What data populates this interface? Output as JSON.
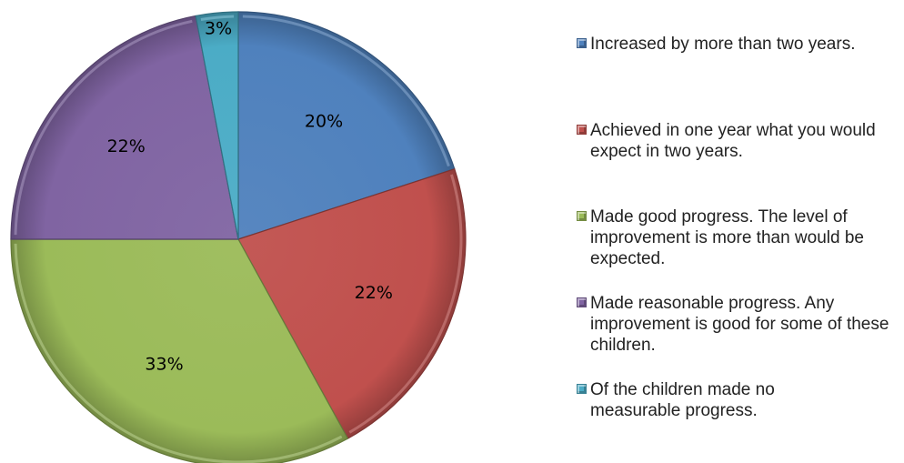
{
  "chart_data": {
    "type": "pie",
    "categories": [
      "Increased by more than two years.",
      "Achieved in one year what you would expect in two years.",
      "Made good progress. The level of improvement is more than would be expected.",
      "Made reasonable progress. Any improvement is good for some of these children.",
      "Of the children made no measurable progress."
    ],
    "values": [
      20,
      22,
      33,
      22,
      3
    ],
    "data_labels": [
      "20%",
      "22%",
      "33%",
      "22%",
      "3%"
    ],
    "colors": [
      "#4f81bd",
      "#c0504d",
      "#9bbb59",
      "#8064a2",
      "#4bacc6"
    ],
    "legend_placement": "right",
    "start_angle_deg": 0,
    "direction": "clockwise",
    "title": ""
  }
}
